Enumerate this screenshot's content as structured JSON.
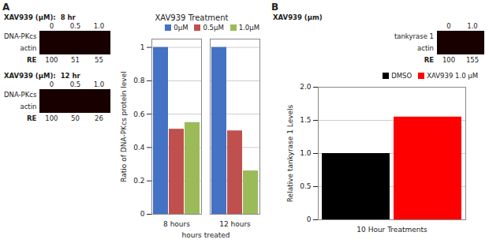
{
  "chart_data": [
    {
      "type": "bar",
      "title": "XAV939 Treatment",
      "xlabel": "hours treated",
      "ylabel": "Ratio of DNA-PKcs protein level",
      "categories": [
        "8 hours",
        "12 hours"
      ],
      "series": [
        {
          "name": "0μM",
          "color": "#4472C4",
          "values": [
            1.0,
            1.0
          ]
        },
        {
          "name": "0.5μM",
          "color": "#C0504D",
          "values": [
            0.51,
            0.5
          ]
        },
        {
          "name": "1.0μM",
          "color": "#9BBB59",
          "values": [
            0.55,
            0.26
          ]
        }
      ],
      "ylim": [
        0,
        1.05
      ],
      "yticks": [
        0,
        0.2,
        0.4,
        0.6,
        0.8,
        1
      ],
      "grid": true,
      "legend": "upper right",
      "annotations": [
        "A",
        {
          "text": "XAV939 (μM):  8 hr",
          "lanes": [
            "0",
            "0.5",
            "1.0"
          ],
          "rows": [
            "DNA-PKcs",
            "actin"
          ],
          "color": "#180000",
          "label": "RE",
          "values": [
            100,
            51,
            55
          ]
        },
        {
          "text": "XAV939 (μM):  12 hr",
          "lanes": [
            "0",
            "0.5",
            "1.0"
          ],
          "rows": [
            "DNA-PKcs",
            "actin"
          ],
          "color": "#180000",
          "label": "RE",
          "values": [
            100,
            50,
            26
          ]
        }
      ]
    },
    {
      "type": "bar",
      "ylabel": "Relative tankyrase 1 Levels",
      "categories": [
        "10 Hour Treatments"
      ],
      "series": [
        {
          "name": "DMSO",
          "color": "#000000",
          "values": [
            1.0
          ]
        },
        {
          "name": "XAV939 1.0 μM",
          "color": "#FF0000",
          "values": [
            1.55
          ]
        }
      ],
      "ylim": [
        0,
        2
      ],
      "yticks": [
        0,
        0.5,
        {
          "value": 1.0,
          "label": "1.0"
        },
        1.5,
        {
          "value": 2.0,
          "label": "2.0"
        }
      ],
      "grid": true,
      "legend": "upper right",
      "annotations": [
        "B",
        {
          "text": "XAV939 (μm)",
          "lanes": [
            "0",
            "1.0"
          ],
          "rows": [
            "tankyrase 1",
            "actin"
          ],
          "color": "#180000",
          "label": "RE",
          "values": [
            100,
            155
          ]
        }
      ]
    }
  ]
}
